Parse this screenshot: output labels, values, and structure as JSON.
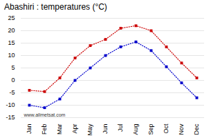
{
  "chart_data": {
    "type": "line",
    "title": "Abashiri : temperatures (°C)",
    "categories": [
      "Jan",
      "Feb",
      "Mar",
      "Apr",
      "May",
      "Jun",
      "Jul",
      "Aug",
      "Sep",
      "Oct",
      "Nov",
      "Dec"
    ],
    "series": [
      {
        "color": "#cc0000",
        "marker": "square",
        "line_style": "dotted",
        "values": [
          -4,
          -4.5,
          1,
          9,
          14,
          16.5,
          21,
          22,
          20,
          13.5,
          7,
          1
        ]
      },
      {
        "color": "#0000cc",
        "marker": "square",
        "line_style": "dotted",
        "values": [
          -10,
          -11,
          -7.5,
          0,
          5,
          10,
          13.5,
          15.5,
          12,
          5.5,
          -1,
          -7
        ]
      }
    ],
    "ylim": [
      -15,
      25
    ],
    "yticks": [
      -15,
      -10,
      -5,
      0,
      5,
      10,
      15,
      20,
      25
    ],
    "grid": true,
    "annotations": [
      "www.allmetsat.com"
    ]
  }
}
